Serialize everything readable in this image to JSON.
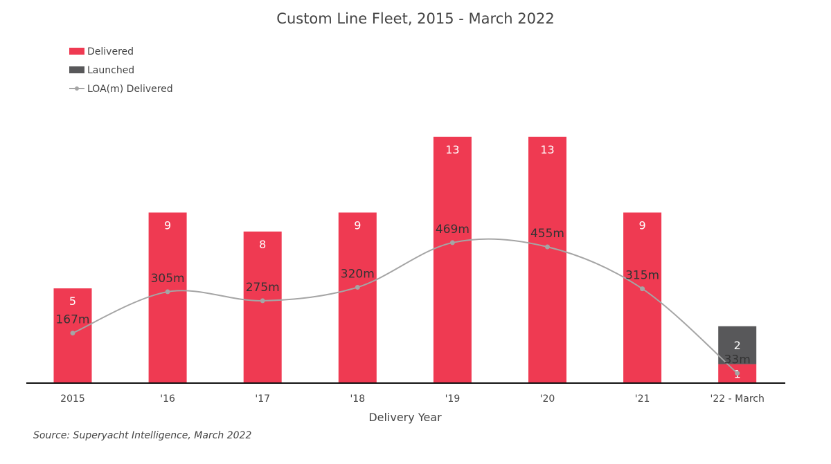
{
  "chart_data": {
    "type": "bar",
    "title": "Custom Line Fleet, 2015 - March 2022",
    "xlabel": "Delivery Year",
    "ylabel": "",
    "categories": [
      "2015",
      "'16",
      "'17",
      "'18",
      "'19",
      "'20",
      "'21",
      "'22 - March"
    ],
    "stacked": true,
    "ylim": [
      0,
      16
    ],
    "series": [
      {
        "name": "Delivered",
        "type": "bar",
        "color": "#EF3A52",
        "values": [
          5,
          9,
          8,
          9,
          13,
          13,
          9,
          1
        ]
      },
      {
        "name": "Launched",
        "type": "bar",
        "color": "#58585A",
        "values": [
          0,
          0,
          0,
          0,
          0,
          0,
          0,
          2
        ]
      },
      {
        "name": "LOA(m) Delivered",
        "type": "line",
        "color": "#A5A5A5",
        "values": [
          167,
          305,
          275,
          320,
          469,
          455,
          315,
          33
        ],
        "labels": [
          "167m",
          "305m",
          "275m",
          "320m",
          "469m",
          "455m",
          "315m",
          "33m"
        ],
        "ylim": [
          0,
          560
        ]
      }
    ],
    "legend_position": "top-left",
    "grid": false,
    "source": "Source: Superyacht Intelligence, March 2022"
  }
}
